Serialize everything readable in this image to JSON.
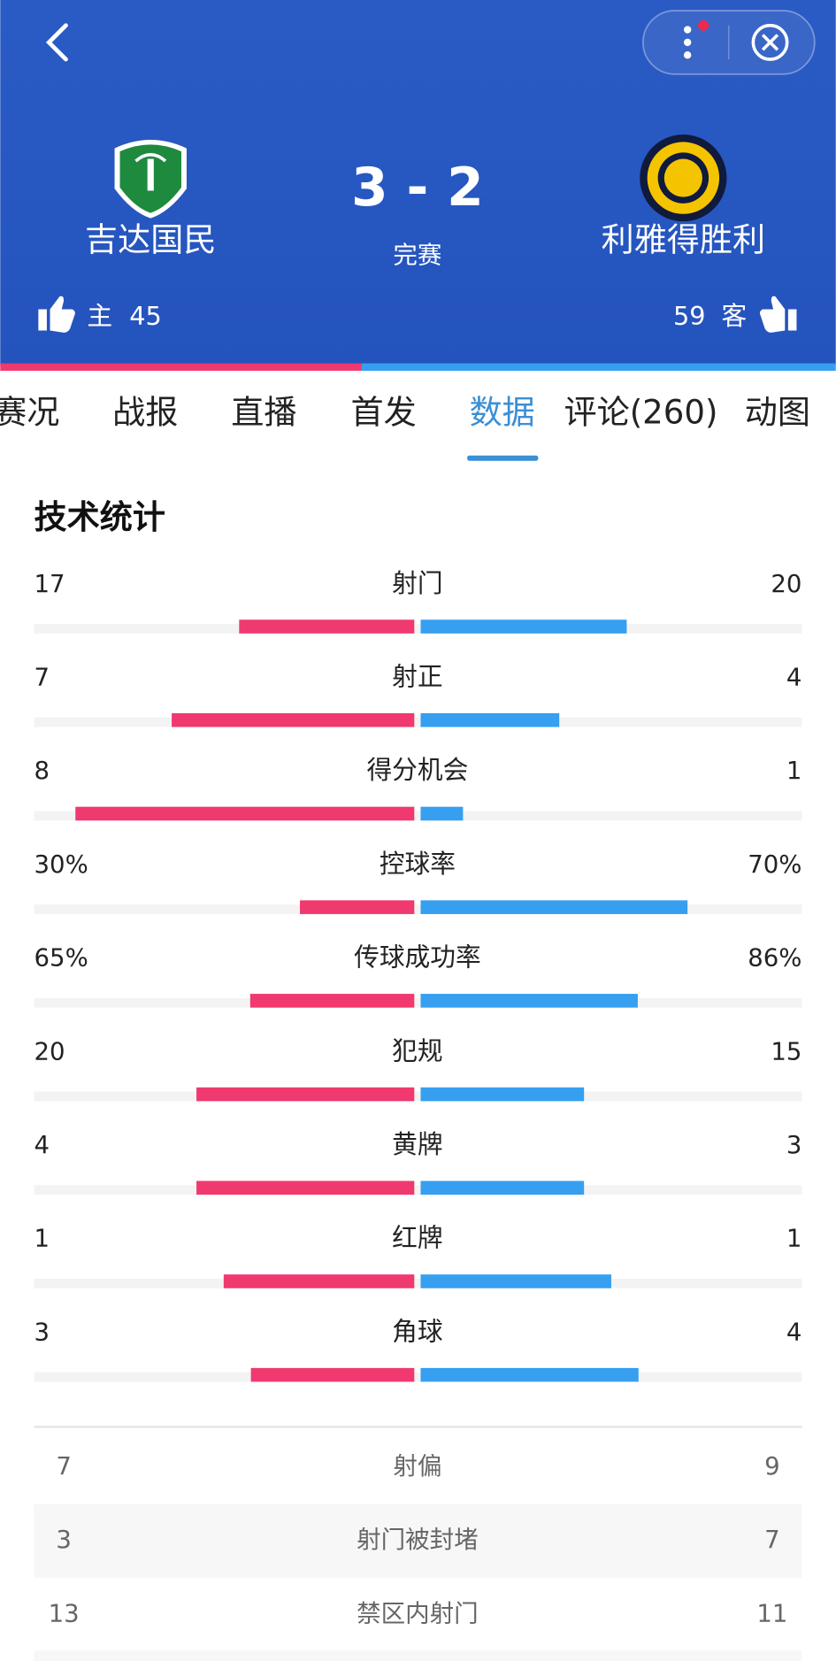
{
  "header": {
    "home_team": "吉达国民",
    "away_team": "利雅得胜利",
    "score": "3 - 2",
    "status": "完赛",
    "home_tag": "主",
    "home_likes": 45,
    "away_tag": "客",
    "away_likes": 59
  },
  "tabs": {
    "items": [
      "赛况",
      "战报",
      "直播",
      "首发",
      "数据",
      "评论(260)",
      "动图"
    ],
    "active": 4
  },
  "section_title": "技术统计",
  "stats": [
    {
      "name": "射门",
      "values": [
        17,
        20
      ]
    },
    {
      "name": "射正",
      "values": [
        7,
        4
      ]
    },
    {
      "name": "得分机会",
      "values": [
        8,
        1
      ]
    },
    {
      "name": "控球率",
      "values": [
        30,
        70
      ],
      "value_labels": [
        "30%",
        "70%"
      ]
    },
    {
      "name": "传球成功率",
      "values": [
        65,
        86
      ],
      "value_labels": [
        "65%",
        "86%"
      ]
    },
    {
      "name": "犯规",
      "values": [
        20,
        15
      ]
    },
    {
      "name": "黄牌",
      "values": [
        4,
        3
      ]
    },
    {
      "name": "红牌",
      "values": [
        1,
        1
      ]
    },
    {
      "name": "角球",
      "values": [
        3,
        4
      ]
    }
  ],
  "table": {
    "rows": [
      {
        "name": "射偏",
        "values": [
          7,
          9
        ]
      },
      {
        "name": "射门被封堵",
        "values": [
          3,
          7
        ]
      },
      {
        "name": "禁区内射门",
        "values": [
          13,
          11
        ]
      }
    ]
  }
}
